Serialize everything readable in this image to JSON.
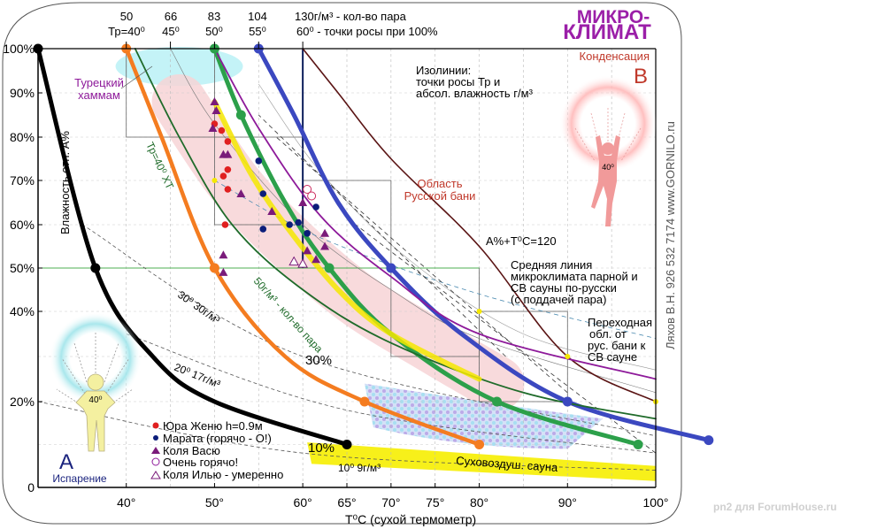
{
  "chart_data": {
    "type": "line",
    "title": "МИКРО-КЛИМАТ",
    "title_lines": [
      "МИКРО-",
      "КЛИМАТ"
    ],
    "title_color": "#9b1fa8",
    "xlabel": "T⁰C (сухой термометр)",
    "ylabel": "Влажность отн. А%",
    "xlim": [
      30,
      100
    ],
    "ylim": [
      0,
      100
    ],
    "x_ticks": [
      {
        "v": 40,
        "label": "40°"
      },
      {
        "v": 50,
        "label": "50°"
      },
      {
        "v": 60,
        "label": "60°"
      },
      {
        "v": 65,
        "label": "65°"
      },
      {
        "v": 70,
        "label": "70°"
      },
      {
        "v": 75,
        "label": "75°"
      },
      {
        "v": 80,
        "label": "80°"
      },
      {
        "v": 90,
        "label": "90°"
      },
      {
        "v": 100,
        "label": "100°"
      }
    ],
    "y_ticks": [
      {
        "v": 0,
        "label": "0"
      },
      {
        "v": 20,
        "label": "20%"
      },
      {
        "v": 40,
        "label": "40%"
      },
      {
        "v": 50,
        "label": "50%"
      },
      {
        "v": 60,
        "label": "60%"
      },
      {
        "v": 70,
        "label": "70%"
      },
      {
        "v": 80,
        "label": "80%"
      },
      {
        "v": 90,
        "label": "90%"
      },
      {
        "v": 100,
        "label": "100%"
      }
    ],
    "top_labels": [
      {
        "x": 40,
        "line1": "50",
        "line2": "Тр=40⁰"
      },
      {
        "x": 45,
        "line1": "66",
        "line2": "45⁰"
      },
      {
        "x": 50,
        "line1": "83",
        "line2": "50⁰"
      },
      {
        "x": 55,
        "line1": "104",
        "line2": "55⁰"
      },
      {
        "x": 60,
        "line1": "130г/м³ - кол-во пара",
        "line2": "60⁰ - точки росы при 100%"
      }
    ],
    "series": [
      {
        "name": "Тр=30⁰ (30г/м³)",
        "color": "#000000",
        "points": [
          [
            30,
            100
          ],
          [
            36.5,
            50
          ],
          [
            43,
            30
          ],
          [
            50,
            20
          ],
          [
            65,
            10
          ]
        ]
      },
      {
        "name": "Тр=40⁰ (50г/м³)",
        "color": "#f47c20",
        "points": [
          [
            40,
            100
          ],
          [
            44,
            80
          ],
          [
            50,
            50
          ],
          [
            58,
            30
          ],
          [
            67,
            20
          ],
          [
            80,
            10
          ]
        ]
      },
      {
        "name": "Тр=50⁰ (83г/м³)",
        "color": "#2ca04a",
        "points": [
          [
            50,
            100
          ],
          [
            53,
            85
          ],
          [
            58,
            65
          ],
          [
            63,
            50
          ],
          [
            70,
            35
          ],
          [
            82,
            20
          ],
          [
            98,
            10
          ]
        ]
      },
      {
        "name": "Тр=55⁰ (104г/м³)",
        "color": "#3b48c0",
        "points": [
          [
            55,
            100
          ],
          [
            59,
            85
          ],
          [
            64,
            65
          ],
          [
            70,
            50
          ],
          [
            78,
            35
          ],
          [
            90,
            20
          ],
          [
            106,
            11
          ]
        ]
      },
      {
        "name": "Тр=60⁰ (130г/м³)",
        "color": "#5a1414",
        "points": [
          [
            60,
            100
          ],
          [
            64,
            90
          ],
          [
            70,
            75
          ],
          [
            80,
            55
          ],
          [
            90,
            30
          ],
          [
            100,
            20
          ]
        ]
      },
      {
        "name": "50г/м³ - кол-во пара",
        "color": "#1f6b2a",
        "points": [
          [
            41,
            100
          ],
          [
            46,
            80
          ],
          [
            52,
            60
          ],
          [
            60,
            45
          ],
          [
            70,
            33
          ],
          [
            85,
            22
          ],
          [
            100,
            16
          ]
        ]
      },
      {
        "name": "Средняя линия микроклимата",
        "color": "#f5e800",
        "points": [
          [
            50,
            88
          ],
          [
            54,
            72
          ],
          [
            58,
            60
          ],
          [
            64,
            45
          ],
          [
            70,
            35
          ],
          [
            80,
            25
          ]
        ]
      },
      {
        "name": "Изолиния (фиолетовая)",
        "color": "#8e1a9a",
        "points": [
          [
            50,
            100
          ],
          [
            55,
            82
          ],
          [
            62,
            62
          ],
          [
            70,
            48
          ],
          [
            80,
            35
          ],
          [
            100,
            25
          ]
        ]
      }
    ],
    "markers": {
      "black": [
        [
          30,
          100
        ],
        [
          36.5,
          50
        ],
        [
          65,
          10
        ]
      ],
      "orange": [
        [
          40,
          100
        ],
        [
          50,
          50
        ],
        [
          67,
          20
        ],
        [
          80,
          10
        ]
      ],
      "green": [
        [
          50,
          100
        ],
        [
          53,
          85
        ],
        [
          63,
          50
        ],
        [
          82,
          20
        ],
        [
          98,
          10
        ]
      ],
      "blue": [
        [
          55,
          100
        ],
        [
          70,
          50
        ],
        [
          90,
          20
        ],
        [
          106,
          11
        ]
      ],
      "yellow_star": [
        [
          50,
          70
        ],
        [
          80,
          40
        ],
        [
          90,
          30
        ],
        [
          100,
          20
        ]
      ]
    },
    "scatter": [
      {
        "name": "Юра Женю h=0.9м",
        "shape": "circle",
        "fill": "#e02020",
        "points": [
          [
            50,
            83
          ],
          [
            50.8,
            81.5
          ],
          [
            51,
            71
          ],
          [
            51.5,
            72.5
          ],
          [
            51.5,
            68
          ],
          [
            51.2,
            60
          ],
          [
            51.5,
            79
          ]
        ]
      },
      {
        "name": "Марата (горячо - О!)",
        "shape": "circle",
        "fill": "#0b1d7a",
        "points": [
          [
            55,
            74.5
          ],
          [
            55.5,
            67
          ],
          [
            55.5,
            59
          ],
          [
            58.5,
            60
          ],
          [
            59.5,
            60.5
          ],
          [
            60.5,
            58
          ],
          [
            61.5,
            64
          ]
        ]
      },
      {
        "name": "Коля Васю",
        "shape": "triangle",
        "fill": "#7a1b7a",
        "points": [
          [
            50,
            88
          ],
          [
            50.2,
            86
          ],
          [
            49.8,
            82
          ],
          [
            51,
            76
          ],
          [
            51.5,
            76
          ],
          [
            53,
            67
          ],
          [
            56.5,
            63
          ],
          [
            62.5,
            58
          ],
          [
            60,
            65
          ],
          [
            60.5,
            54
          ],
          [
            62.5,
            55
          ],
          [
            61.5,
            52
          ],
          [
            51,
            53
          ],
          [
            51,
            49
          ]
        ]
      },
      {
        "name": "Очень горячо!",
        "shape": "circle-open",
        "fill": "#cc2b5e",
        "points": [
          [
            60.5,
            68
          ],
          [
            61,
            66.5
          ]
        ]
      },
      {
        "name": "Коля Илью - умеренно",
        "shape": "triangle-open",
        "fill": "#7a1b7a",
        "points": [
          [
            59,
            51.5
          ],
          [
            60,
            51
          ]
        ]
      }
    ],
    "isolines": [
      {
        "label": "10⁰ 9г/м³",
        "points": [
          [
            30,
            20
          ],
          [
            60,
            8
          ],
          [
            100,
            4
          ]
        ]
      },
      {
        "label": "20⁰ 17г/м³",
        "points": [
          [
            40,
            35
          ],
          [
            65,
            18
          ],
          [
            100,
            8
          ]
        ]
      },
      {
        "label": "30⁰ 30г/м³",
        "points": [
          [
            35,
            60
          ],
          [
            60,
            30
          ],
          [
            100,
            12
          ]
        ]
      }
    ],
    "annotations": {
      "turkish": "Турецкий\nхаммам",
      "isolines_title": "Изолинии:",
      "isolines_line2": "точки росы Тр и",
      "isolines_line3": "абсол. влажность г/м³",
      "condensation": "Конденсация",
      "zone_b": "B",
      "russian_bath_1": "Область",
      "russian_bath_2": "Русской бани",
      "a_plus_t": "А%+T⁰C=120",
      "avg_line_1": "Средняя линия",
      "avg_line_2": "микроклимата парной и",
      "avg_line_3": "СВ сауны по-русски",
      "avg_line_4": "(с поддачей пара)",
      "transition_1": "Переходная",
      "transition_2": "обл. от",
      "transition_3": "рус. бани к",
      "transition_4": "СВ сауне",
      "dry_sauna": "Суховоздуш. сауна",
      "zone_a": "A",
      "evaporation": "Испарение",
      "pct_30": "30%",
      "pct_10": "10%",
      "tr40_label": "Тр=40⁰ ХТ",
      "vapor_50": "50г/м³ - кол-во пара",
      "iso30": "30⁰ 30г/м³",
      "iso20": "20⁰ 17г/м³",
      "iso10": "10⁰ 9г/м³",
      "figure_a_temp": "40⁰",
      "figure_b_temp": "40⁰"
    },
    "legend_placement": "bottom-left",
    "grid": true
  },
  "sidebar_text": "Ляхов В.Н.   926 532 7174   www.GORNILO.ru",
  "watermark": "pn2 для ForumHouse.ru"
}
